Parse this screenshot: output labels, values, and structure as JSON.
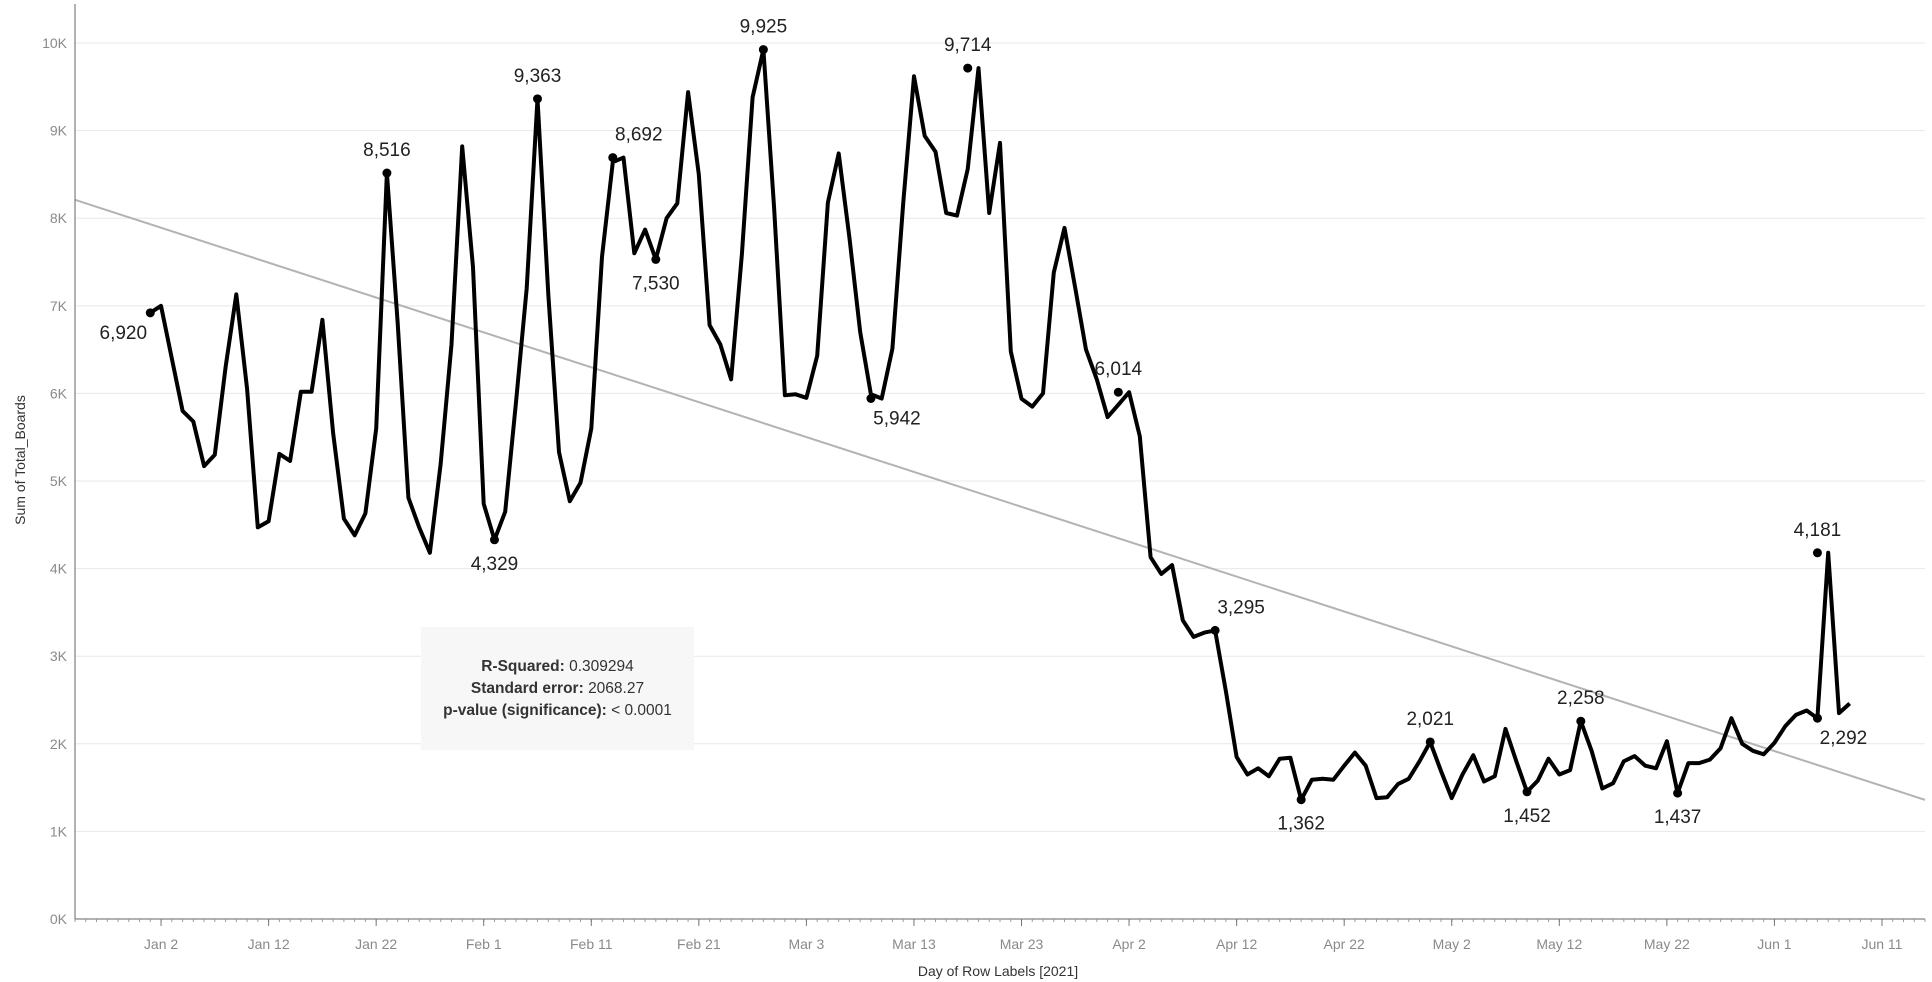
{
  "chart_data": {
    "type": "line",
    "title": "",
    "xlabel": "Day of Row Labels [2021]",
    "ylabel": "Sum of Total_Boards",
    "ylim": [
      0,
      10400
    ],
    "yticks": [
      0,
      1000,
      2000,
      3000,
      4000,
      5000,
      6000,
      7000,
      8000,
      9000,
      10000
    ],
    "ytick_labels": [
      "0K",
      "1K",
      "2K",
      "3K",
      "4K",
      "5K",
      "6K",
      "7K",
      "8K",
      "9K",
      "10K"
    ],
    "xtick_labels": [
      "Jan 2",
      "Jan 12",
      "Jan 22",
      "Feb 1",
      "Feb 11",
      "Feb 21",
      "Mar 3",
      "Mar 13",
      "Mar 23",
      "Apr 2",
      "Apr 12",
      "Apr 22",
      "May 2",
      "May 12",
      "May 22",
      "Jun 1",
      "Jun 11"
    ],
    "xtick_dates": [
      "2021-01-02",
      "2021-01-12",
      "2021-01-22",
      "2021-02-01",
      "2021-02-11",
      "2021-02-21",
      "2021-03-03",
      "2021-03-13",
      "2021-03-23",
      "2021-04-02",
      "2021-04-12",
      "2021-04-22",
      "2021-05-02",
      "2021-05-12",
      "2021-05-22",
      "2021-06-01",
      "2021-06-11"
    ],
    "xlim": [
      "2020-12-25",
      "2021-06-15"
    ],
    "grid": true,
    "series": [
      {
        "x": [
          "2021-01-01",
          "2021-01-02",
          "2021-01-03",
          "2021-01-04",
          "2021-01-05",
          "2021-01-06",
          "2021-01-07",
          "2021-01-08",
          "2021-01-09",
          "2021-01-10",
          "2021-01-11",
          "2021-01-12",
          "2021-01-13",
          "2021-01-14",
          "2021-01-15",
          "2021-01-16",
          "2021-01-17",
          "2021-01-18",
          "2021-01-19",
          "2021-01-20",
          "2021-01-21",
          "2021-01-22",
          "2021-01-23",
          "2021-01-24",
          "2021-01-25",
          "2021-01-26",
          "2021-01-27",
          "2021-01-28",
          "2021-01-29",
          "2021-01-30",
          "2021-01-31",
          "2021-02-01",
          "2021-02-02",
          "2021-02-03",
          "2021-02-04",
          "2021-02-05",
          "2021-02-06",
          "2021-02-07",
          "2021-02-08",
          "2021-02-09",
          "2021-02-10",
          "2021-02-11",
          "2021-02-12",
          "2021-02-13",
          "2021-02-14",
          "2021-02-15",
          "2021-02-16",
          "2021-02-17",
          "2021-02-18",
          "2021-02-19",
          "2021-02-20",
          "2021-02-21",
          "2021-02-22",
          "2021-02-23",
          "2021-02-24",
          "2021-02-25",
          "2021-02-26",
          "2021-02-27",
          "2021-02-28",
          "2021-03-01",
          "2021-03-02",
          "2021-03-03",
          "2021-03-04",
          "2021-03-05",
          "2021-03-06",
          "2021-03-07",
          "2021-03-08",
          "2021-03-09",
          "2021-03-10",
          "2021-03-11",
          "2021-03-12",
          "2021-03-13",
          "2021-03-14",
          "2021-03-15",
          "2021-03-16",
          "2021-03-17",
          "2021-03-18",
          "2021-03-19",
          "2021-03-20",
          "2021-03-21",
          "2021-03-22",
          "2021-03-23",
          "2021-03-24",
          "2021-03-25",
          "2021-03-26",
          "2021-03-27",
          "2021-03-28",
          "2021-03-29",
          "2021-03-30",
          "2021-03-31",
          "2021-04-01",
          "2021-04-02",
          "2021-04-03",
          "2021-04-04",
          "2021-04-05",
          "2021-04-06",
          "2021-04-07",
          "2021-04-08",
          "2021-04-09",
          "2021-04-10",
          "2021-04-11",
          "2021-04-12",
          "2021-04-13",
          "2021-04-14",
          "2021-04-15",
          "2021-04-16",
          "2021-04-17",
          "2021-04-18",
          "2021-04-19",
          "2021-04-20",
          "2021-04-21",
          "2021-04-22",
          "2021-04-23",
          "2021-04-24",
          "2021-04-25",
          "2021-04-26",
          "2021-04-27",
          "2021-04-28",
          "2021-04-29",
          "2021-04-30",
          "2021-05-01",
          "2021-05-02",
          "2021-05-03",
          "2021-05-04",
          "2021-05-05",
          "2021-05-06",
          "2021-05-07",
          "2021-05-08",
          "2021-05-09",
          "2021-05-10",
          "2021-05-11",
          "2021-05-12",
          "2021-05-13",
          "2021-05-14",
          "2021-05-15",
          "2021-05-16",
          "2021-05-17",
          "2021-05-18",
          "2021-05-19",
          "2021-05-20",
          "2021-05-21",
          "2021-05-22",
          "2021-05-23",
          "2021-05-24",
          "2021-05-25",
          "2021-05-26",
          "2021-05-27",
          "2021-05-28",
          "2021-05-29",
          "2021-05-30",
          "2021-05-31",
          "2021-06-01",
          "2021-06-02",
          "2021-06-03",
          "2021-06-04",
          "2021-06-05",
          "2021-06-06",
          "2021-06-07",
          "2021-06-08"
        ],
        "values": [
          6920,
          7000,
          6400,
          5800,
          5680,
          5170,
          5300,
          6300,
          7130,
          6050,
          4470,
          4540,
          5310,
          5230,
          6020,
          6020,
          6840,
          5550,
          4570,
          4380,
          4630,
          5600,
          8516,
          6800,
          4810,
          4470,
          4180,
          5200,
          6560,
          8820,
          7440,
          4740,
          4329,
          4650,
          5900,
          7200,
          9363,
          7130,
          5330,
          4770,
          4980,
          5600,
          7560,
          8640,
          8692,
          7600,
          7870,
          7530,
          8000,
          8170,
          9440,
          8500,
          6780,
          6560,
          6160,
          7590,
          9380,
          9925,
          8120,
          5980,
          5990,
          5950,
          6430,
          8180,
          8740,
          7780,
          6700,
          5990,
          5942,
          6510,
          8170,
          9620,
          8940,
          8760,
          8060,
          8030,
          8560,
          9714,
          8060,
          8860,
          6480,
          5940,
          5850,
          6000,
          7380,
          7890,
          7200,
          6500,
          6160,
          5730,
          5870,
          6014,
          5510,
          4130,
          3940,
          4040,
          3410,
          3220,
          3270,
          3295,
          2600,
          1850,
          1650,
          1720,
          1630,
          1830,
          1840,
          1362,
          1590,
          1600,
          1590,
          1750,
          1900,
          1750,
          1380,
          1390,
          1540,
          1600,
          1800,
          2021,
          1690,
          1380,
          1650,
          1870,
          1570,
          1630,
          2170,
          1800,
          1452,
          1580,
          1830,
          1650,
          1700,
          2258,
          1920,
          1490,
          1550,
          1800,
          1860,
          1750,
          1720,
          2030,
          1437,
          1780,
          1780,
          1820,
          1950,
          2292,
          2000,
          1920,
          1880,
          2010,
          2200,
          2330,
          2380,
          2292,
          4181,
          2350,
          2460
        ]
      }
    ],
    "trend_line": {
      "x": [
        "2020-12-25",
        "2021-06-15"
      ],
      "y": [
        8210,
        1360
      ]
    },
    "annotations": [
      {
        "x": "2021-01-01",
        "y": 6920,
        "label": "6,920",
        "pos": "below-left"
      },
      {
        "x": "2021-01-23",
        "y": 8516,
        "label": "8,516",
        "pos": "above"
      },
      {
        "x": "2021-02-02",
        "y": 4329,
        "label": "4,329",
        "pos": "below"
      },
      {
        "x": "2021-02-06",
        "y": 9363,
        "label": "9,363",
        "pos": "above"
      },
      {
        "x": "2021-02-13",
        "y": 8692,
        "label": "8,692",
        "pos": "above-right"
      },
      {
        "x": "2021-02-17",
        "y": 7530,
        "label": "7,530",
        "pos": "below"
      },
      {
        "x": "2021-02-27",
        "y": 9925,
        "label": "9,925",
        "pos": "above"
      },
      {
        "x": "2021-03-09",
        "y": 5942,
        "label": "5,942",
        "pos": "below-right"
      },
      {
        "x": "2021-03-18",
        "y": 9714,
        "label": "9,714",
        "pos": "above"
      },
      {
        "x": "2021-04-01",
        "y": 6014,
        "label": "6,014",
        "pos": "above"
      },
      {
        "x": "2021-04-10",
        "y": 3295,
        "label": "3,295",
        "pos": "above-right"
      },
      {
        "x": "2021-04-18",
        "y": 1362,
        "label": "1,362",
        "pos": "below"
      },
      {
        "x": "2021-04-30",
        "y": 2021,
        "label": "2,021",
        "pos": "above"
      },
      {
        "x": "2021-05-09",
        "y": 1452,
        "label": "1,452",
        "pos": "below"
      },
      {
        "x": "2021-05-14",
        "y": 2258,
        "label": "2,258",
        "pos": "above"
      },
      {
        "x": "2021-05-23",
        "y": 1437,
        "label": "1,437",
        "pos": "below"
      },
      {
        "x": "2021-06-05",
        "y": 4181,
        "label": "4,181",
        "pos": "above"
      },
      {
        "x": "2021-06-05",
        "y": 2292,
        "label": "2,292",
        "pos": "below-right"
      }
    ],
    "colors": {
      "line": "#000000",
      "trend": "#b3b3b3",
      "grid": "#e8e8e8",
      "axis": "#666666"
    }
  },
  "stats": {
    "r_squared_label": "R-Squared:",
    "r_squared_value": "0.309294",
    "std_error_label": "Standard error:",
    "std_error_value": "2068.27",
    "p_value_label": "p-value (significance):",
    "p_value_value": "< 0.0001"
  }
}
